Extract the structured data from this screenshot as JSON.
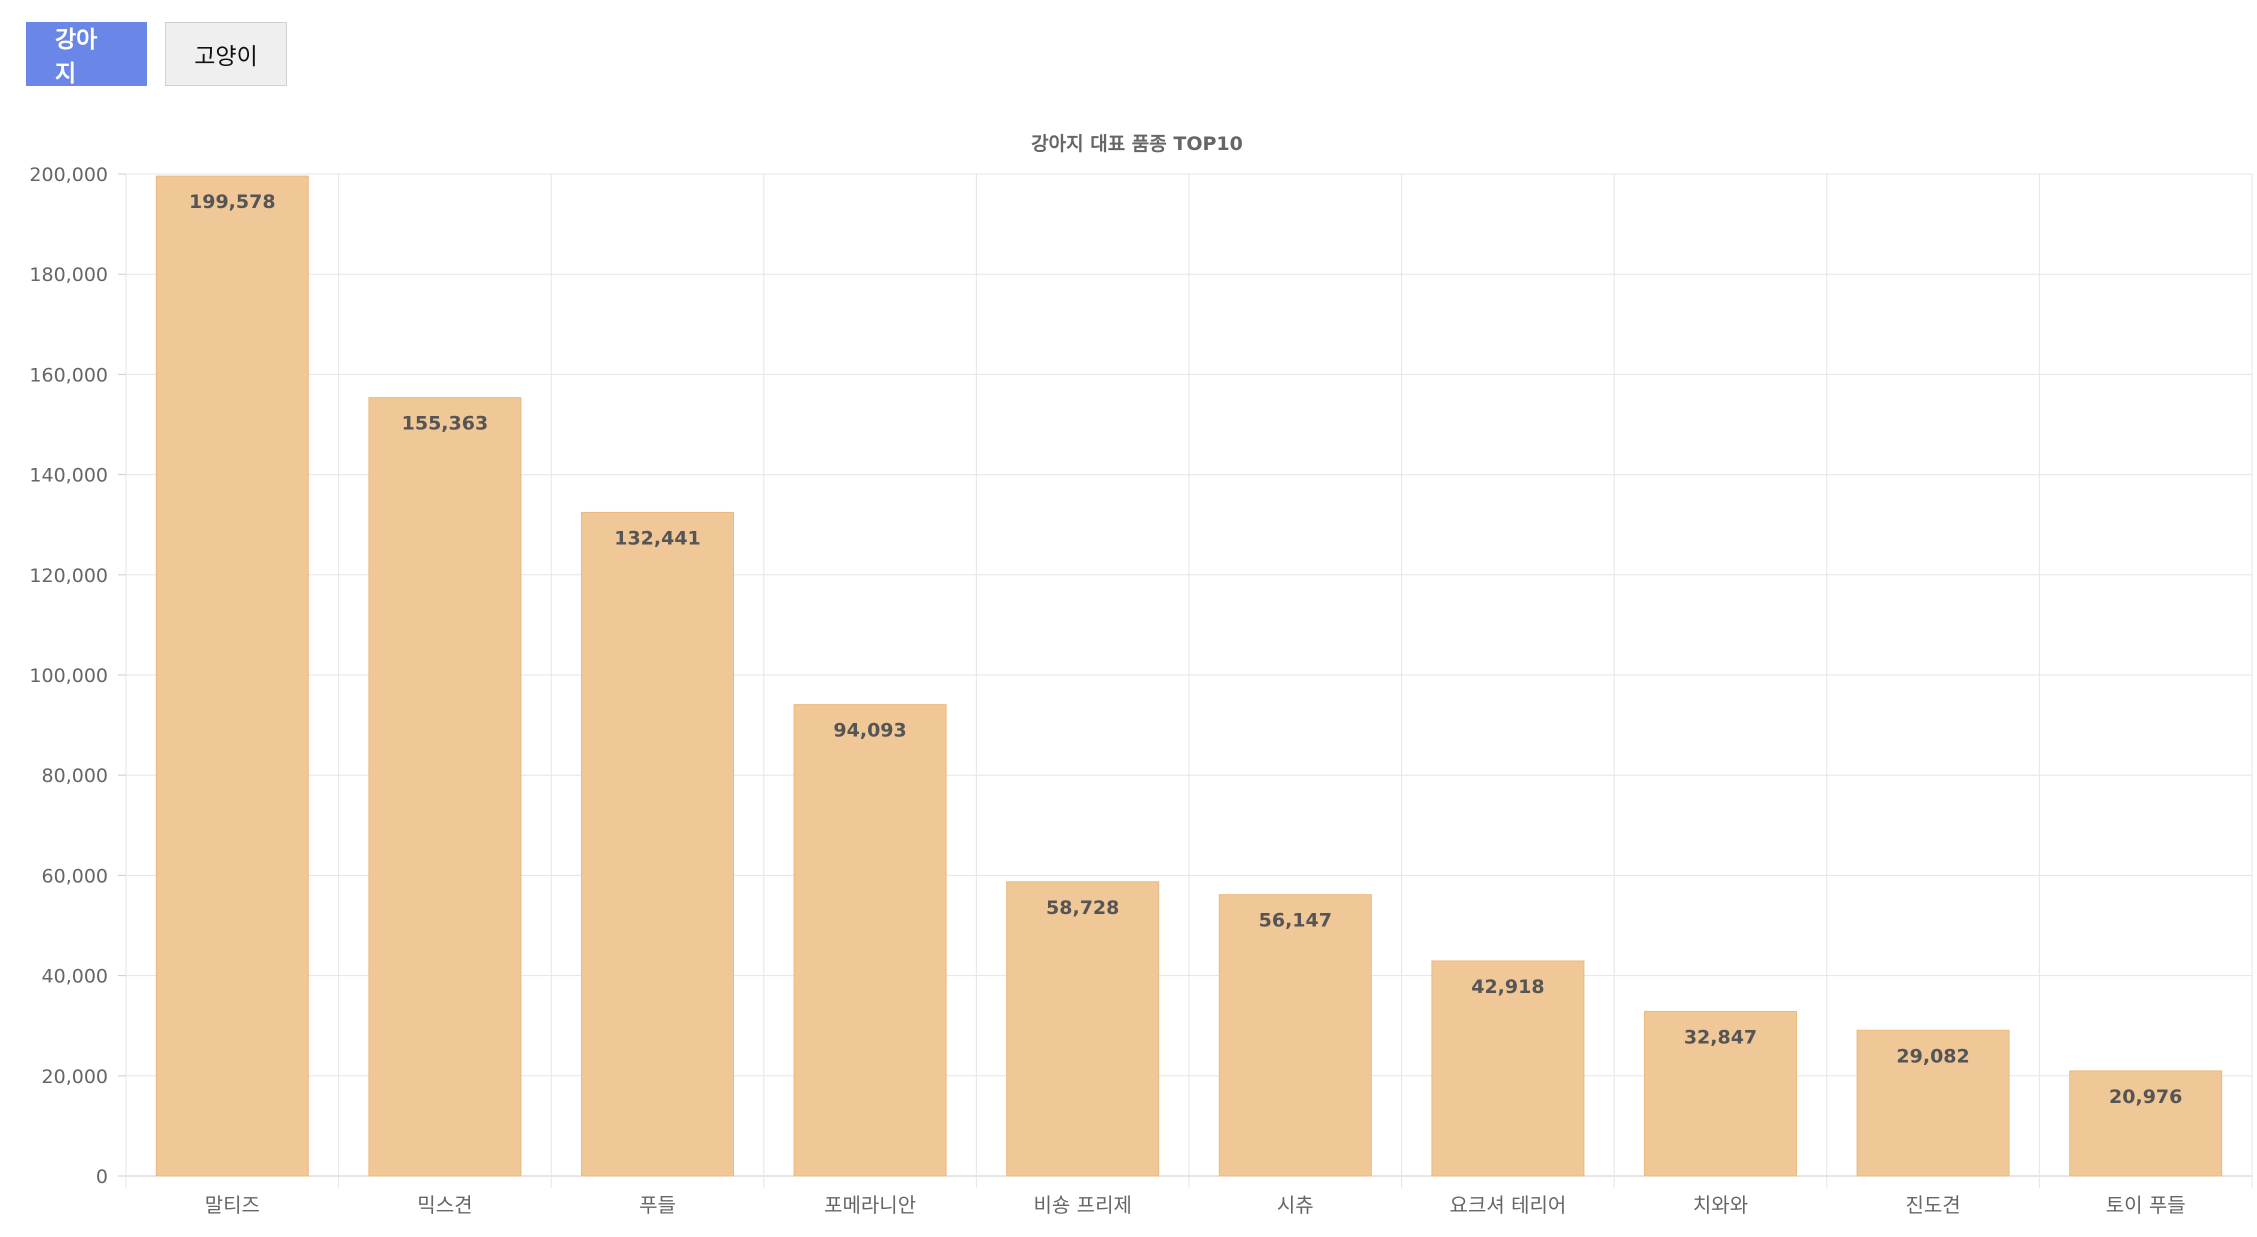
{
  "tabs": [
    {
      "label": "강아지",
      "active": true
    },
    {
      "label": "고양이",
      "active": false
    }
  ],
  "colors": {
    "bar": "#f0c797",
    "bar_stroke": "#ecb97f",
    "tab_active": "#6a87e8",
    "grid": "#e5e5e5"
  },
  "chart_data": {
    "type": "bar",
    "title": "강아지 대표 품종 TOP10",
    "categories": [
      "말티즈",
      "믹스견",
      "푸들",
      "포메라니안",
      "비숑 프리제",
      "시츄",
      "요크셔 테리어",
      "치와와",
      "진도견",
      "토이 푸들"
    ],
    "values": [
      199578,
      155363,
      132441,
      94093,
      58728,
      56147,
      42918,
      32847,
      29082,
      20976
    ],
    "value_labels": [
      "199,578",
      "155,363",
      "132,441",
      "94,093",
      "58,728",
      "56,147",
      "42,918",
      "32,847",
      "29,082",
      "20,976"
    ],
    "ylim": [
      0,
      200000
    ],
    "yticks": [
      0,
      20000,
      40000,
      60000,
      80000,
      100000,
      120000,
      140000,
      160000,
      180000,
      200000
    ],
    "ytick_labels": [
      "0",
      "20,000",
      "40,000",
      "60,000",
      "80,000",
      "100,000",
      "120,000",
      "140,000",
      "160,000",
      "180,000",
      "200,000"
    ],
    "xlabel": "",
    "ylabel": "",
    "grid": true,
    "legend": false
  }
}
